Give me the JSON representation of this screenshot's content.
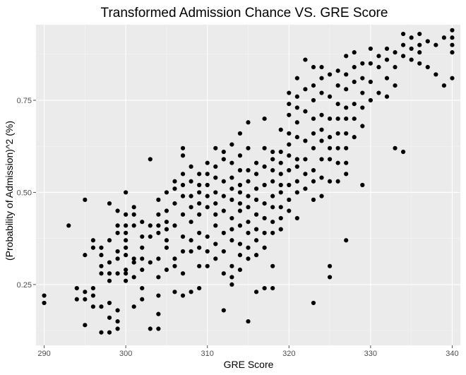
{
  "colors": {
    "panel": "#ebebeb",
    "grid_major": "#ffffff",
    "grid_minor": "#f5f5f5",
    "point": "#000000",
    "tick": "#4d4d4d"
  },
  "chart_data": {
    "type": "scatter",
    "title": "Transformed Admission Chance VS. GRE Score",
    "xlabel": "GRE Score",
    "ylabel": "(Probability of Admission)^2 (%)",
    "xlim": [
      289,
      341
    ],
    "ylim": [
      0.085,
      0.955
    ],
    "xticks": [
      290,
      300,
      310,
      320,
      330,
      340
    ],
    "xtick_labels": [
      "290",
      "300",
      "310",
      "320",
      "330",
      "340"
    ],
    "yticks": [
      0.25,
      0.5,
      0.75
    ],
    "ytick_labels": [
      "0.25",
      "0.50",
      "0.75"
    ],
    "grid": true,
    "legend": "none",
    "points": [
      [
        290,
        0.2
      ],
      [
        290,
        0.22
      ],
      [
        293,
        0.41
      ],
      [
        294,
        0.21
      ],
      [
        294,
        0.24
      ],
      [
        295,
        0.14
      ],
      [
        295,
        0.21
      ],
      [
        295,
        0.23
      ],
      [
        295,
        0.33
      ],
      [
        295,
        0.48
      ],
      [
        296,
        0.19
      ],
      [
        296,
        0.22
      ],
      [
        296,
        0.24
      ],
      [
        296,
        0.35
      ],
      [
        296,
        0.37
      ],
      [
        297,
        0.12
      ],
      [
        297,
        0.19
      ],
      [
        297,
        0.28
      ],
      [
        297,
        0.3
      ],
      [
        297,
        0.33
      ],
      [
        297,
        0.35
      ],
      [
        298,
        0.12
      ],
      [
        298,
        0.16
      ],
      [
        298,
        0.2
      ],
      [
        298,
        0.26
      ],
      [
        298,
        0.28
      ],
      [
        298,
        0.31
      ],
      [
        298,
        0.37
      ],
      [
        298,
        0.47
      ],
      [
        299,
        0.13
      ],
      [
        299,
        0.15
      ],
      [
        299,
        0.18
      ],
      [
        299,
        0.28
      ],
      [
        299,
        0.32
      ],
      [
        299,
        0.34
      ],
      [
        299,
        0.39
      ],
      [
        299,
        0.41
      ],
      [
        299,
        0.45
      ],
      [
        300,
        0.26
      ],
      [
        300,
        0.28
      ],
      [
        300,
        0.29
      ],
      [
        300,
        0.33
      ],
      [
        300,
        0.35
      ],
      [
        300,
        0.37
      ],
      [
        300,
        0.39
      ],
      [
        300,
        0.41
      ],
      [
        300,
        0.44
      ],
      [
        300,
        0.5
      ],
      [
        301,
        0.19
      ],
      [
        301,
        0.27
      ],
      [
        301,
        0.31
      ],
      [
        301,
        0.32
      ],
      [
        301,
        0.41
      ],
      [
        301,
        0.44
      ],
      [
        301,
        0.46
      ],
      [
        302,
        0.21
      ],
      [
        302,
        0.24
      ],
      [
        302,
        0.29
      ],
      [
        302,
        0.32
      ],
      [
        302,
        0.35
      ],
      [
        302,
        0.38
      ],
      [
        302,
        0.42
      ],
      [
        303,
        0.13
      ],
      [
        303,
        0.31
      ],
      [
        303,
        0.38
      ],
      [
        303,
        0.41
      ],
      [
        303,
        0.59
      ],
      [
        304,
        0.13
      ],
      [
        304,
        0.17
      ],
      [
        304,
        0.22
      ],
      [
        304,
        0.27
      ],
      [
        304,
        0.32
      ],
      [
        304,
        0.39
      ],
      [
        304,
        0.41
      ],
      [
        304,
        0.44
      ],
      [
        304,
        0.48
      ],
      [
        305,
        0.29
      ],
      [
        305,
        0.35
      ],
      [
        305,
        0.37
      ],
      [
        305,
        0.4
      ],
      [
        305,
        0.42
      ],
      [
        305,
        0.45
      ],
      [
        305,
        0.5
      ],
      [
        306,
        0.23
      ],
      [
        306,
        0.3
      ],
      [
        306,
        0.32
      ],
      [
        306,
        0.41
      ],
      [
        306,
        0.47
      ],
      [
        306,
        0.51
      ],
      [
        306,
        0.53
      ],
      [
        307,
        0.22
      ],
      [
        307,
        0.28
      ],
      [
        307,
        0.34
      ],
      [
        307,
        0.38
      ],
      [
        307,
        0.44
      ],
      [
        307,
        0.49
      ],
      [
        307,
        0.52
      ],
      [
        307,
        0.55
      ],
      [
        307,
        0.6
      ],
      [
        307,
        0.62
      ],
      [
        308,
        0.23
      ],
      [
        308,
        0.34
      ],
      [
        308,
        0.37
      ],
      [
        308,
        0.42
      ],
      [
        308,
        0.46
      ],
      [
        308,
        0.49
      ],
      [
        308,
        0.53
      ],
      [
        308,
        0.57
      ],
      [
        309,
        0.24
      ],
      [
        309,
        0.3
      ],
      [
        309,
        0.35
      ],
      [
        309,
        0.39
      ],
      [
        309,
        0.44
      ],
      [
        309,
        0.47
      ],
      [
        309,
        0.5
      ],
      [
        309,
        0.52
      ],
      [
        309,
        0.55
      ],
      [
        310,
        0.3
      ],
      [
        310,
        0.34
      ],
      [
        310,
        0.38
      ],
      [
        310,
        0.46
      ],
      [
        310,
        0.49
      ],
      [
        310,
        0.52
      ],
      [
        310,
        0.55
      ],
      [
        310,
        0.58
      ],
      [
        311,
        0.32
      ],
      [
        311,
        0.36
      ],
      [
        311,
        0.41
      ],
      [
        311,
        0.44
      ],
      [
        311,
        0.47
      ],
      [
        311,
        0.5
      ],
      [
        311,
        0.54
      ],
      [
        311,
        0.57
      ],
      [
        311,
        0.62
      ],
      [
        312,
        0.18
      ],
      [
        312,
        0.28
      ],
      [
        312,
        0.34
      ],
      [
        312,
        0.39
      ],
      [
        312,
        0.45
      ],
      [
        312,
        0.49
      ],
      [
        312,
        0.53
      ],
      [
        312,
        0.59
      ],
      [
        312,
        0.61
      ],
      [
        313,
        0.25
      ],
      [
        313,
        0.27
      ],
      [
        313,
        0.3
      ],
      [
        313,
        0.37
      ],
      [
        313,
        0.4
      ],
      [
        313,
        0.43
      ],
      [
        313,
        0.48
      ],
      [
        313,
        0.51
      ],
      [
        313,
        0.54
      ],
      [
        313,
        0.58
      ],
      [
        313,
        0.63
      ],
      [
        314,
        0.29
      ],
      [
        314,
        0.33
      ],
      [
        314,
        0.36
      ],
      [
        314,
        0.41
      ],
      [
        314,
        0.45
      ],
      [
        314,
        0.47
      ],
      [
        314,
        0.5
      ],
      [
        314,
        0.52
      ],
      [
        314,
        0.56
      ],
      [
        314,
        0.6
      ],
      [
        314,
        0.66
      ],
      [
        315,
        0.15
      ],
      [
        315,
        0.32
      ],
      [
        315,
        0.35
      ],
      [
        315,
        0.39
      ],
      [
        315,
        0.42
      ],
      [
        315,
        0.46
      ],
      [
        315,
        0.49
      ],
      [
        315,
        0.53
      ],
      [
        315,
        0.56
      ],
      [
        315,
        0.62
      ],
      [
        315,
        0.69
      ],
      [
        316,
        0.23
      ],
      [
        316,
        0.33
      ],
      [
        316,
        0.37
      ],
      [
        316,
        0.4
      ],
      [
        316,
        0.44
      ],
      [
        316,
        0.48
      ],
      [
        316,
        0.51
      ],
      [
        316,
        0.55
      ],
      [
        316,
        0.58
      ],
      [
        317,
        0.24
      ],
      [
        317,
        0.35
      ],
      [
        317,
        0.39
      ],
      [
        317,
        0.43
      ],
      [
        317,
        0.47
      ],
      [
        317,
        0.52
      ],
      [
        317,
        0.57
      ],
      [
        317,
        0.62
      ],
      [
        317,
        0.7
      ],
      [
        318,
        0.24
      ],
      [
        318,
        0.3
      ],
      [
        318,
        0.39
      ],
      [
        318,
        0.42
      ],
      [
        318,
        0.46
      ],
      [
        318,
        0.49
      ],
      [
        318,
        0.53
      ],
      [
        318,
        0.56
      ],
      [
        318,
        0.59
      ],
      [
        318,
        0.61
      ],
      [
        319,
        0.4
      ],
      [
        319,
        0.43
      ],
      [
        319,
        0.46
      ],
      [
        319,
        0.5
      ],
      [
        319,
        0.52
      ],
      [
        319,
        0.55
      ],
      [
        319,
        0.58
      ],
      [
        319,
        0.61
      ],
      [
        319,
        0.67
      ],
      [
        320,
        0.45
      ],
      [
        320,
        0.48
      ],
      [
        320,
        0.52
      ],
      [
        320,
        0.56
      ],
      [
        320,
        0.6
      ],
      [
        320,
        0.63
      ],
      [
        320,
        0.66
      ],
      [
        320,
        0.71
      ],
      [
        320,
        0.74
      ],
      [
        320,
        0.77
      ],
      [
        321,
        0.43
      ],
      [
        321,
        0.5
      ],
      [
        321,
        0.53
      ],
      [
        321,
        0.57
      ],
      [
        321,
        0.59
      ],
      [
        321,
        0.65
      ],
      [
        321,
        0.69
      ],
      [
        321,
        0.73
      ],
      [
        321,
        0.76
      ],
      [
        321,
        0.81
      ],
      [
        322,
        0.51
      ],
      [
        322,
        0.55
      ],
      [
        322,
        0.59
      ],
      [
        322,
        0.64
      ],
      [
        322,
        0.72
      ],
      [
        322,
        0.78
      ],
      [
        322,
        0.86
      ],
      [
        323,
        0.2
      ],
      [
        323,
        0.48
      ],
      [
        323,
        0.53
      ],
      [
        323,
        0.56
      ],
      [
        323,
        0.62
      ],
      [
        323,
        0.66
      ],
      [
        323,
        0.7
      ],
      [
        323,
        0.75
      ],
      [
        323,
        0.79
      ],
      [
        323,
        0.84
      ],
      [
        324,
        0.49
      ],
      [
        324,
        0.54
      ],
      [
        324,
        0.59
      ],
      [
        324,
        0.64
      ],
      [
        324,
        0.67
      ],
      [
        324,
        0.71
      ],
      [
        324,
        0.77
      ],
      [
        324,
        0.81
      ],
      [
        324,
        0.84
      ],
      [
        325,
        0.27
      ],
      [
        325,
        0.3
      ],
      [
        325,
        0.53
      ],
      [
        325,
        0.59
      ],
      [
        325,
        0.62
      ],
      [
        325,
        0.65
      ],
      [
        325,
        0.7
      ],
      [
        325,
        0.76
      ],
      [
        325,
        0.82
      ],
      [
        326,
        0.53
      ],
      [
        326,
        0.58
      ],
      [
        326,
        0.62
      ],
      [
        326,
        0.66
      ],
      [
        326,
        0.7
      ],
      [
        326,
        0.74
      ],
      [
        326,
        0.79
      ],
      [
        326,
        0.83
      ],
      [
        327,
        0.37
      ],
      [
        327,
        0.55
      ],
      [
        327,
        0.58
      ],
      [
        327,
        0.62
      ],
      [
        327,
        0.66
      ],
      [
        327,
        0.7
      ],
      [
        327,
        0.73
      ],
      [
        327,
        0.78
      ],
      [
        327,
        0.82
      ],
      [
        327,
        0.87
      ],
      [
        328,
        0.65
      ],
      [
        328,
        0.7
      ],
      [
        328,
        0.74
      ],
      [
        328,
        0.8
      ],
      [
        328,
        0.84
      ],
      [
        328,
        0.88
      ],
      [
        329,
        0.52
      ],
      [
        329,
        0.68
      ],
      [
        329,
        0.73
      ],
      [
        329,
        0.77
      ],
      [
        329,
        0.81
      ],
      [
        329,
        0.85
      ],
      [
        330,
        0.75
      ],
      [
        330,
        0.8
      ],
      [
        330,
        0.85
      ],
      [
        330,
        0.89
      ],
      [
        331,
        0.77
      ],
      [
        331,
        0.84
      ],
      [
        331,
        0.87
      ],
      [
        332,
        0.76
      ],
      [
        332,
        0.81
      ],
      [
        332,
        0.86
      ],
      [
        332,
        0.89
      ],
      [
        333,
        0.62
      ],
      [
        333,
        0.79
      ],
      [
        333,
        0.84
      ],
      [
        333,
        0.88
      ],
      [
        334,
        0.61
      ],
      [
        334,
        0.87
      ],
      [
        334,
        0.9
      ],
      [
        334,
        0.93
      ],
      [
        335,
        0.86
      ],
      [
        335,
        0.89
      ],
      [
        335,
        0.92
      ],
      [
        336,
        0.85
      ],
      [
        336,
        0.88
      ],
      [
        336,
        0.9
      ],
      [
        336,
        0.93
      ],
      [
        337,
        0.84
      ],
      [
        337,
        0.91
      ],
      [
        338,
        0.82
      ],
      [
        338,
        0.9
      ],
      [
        339,
        0.79
      ],
      [
        339,
        0.92
      ],
      [
        340,
        0.81
      ],
      [
        340,
        0.88
      ],
      [
        340,
        0.9
      ],
      [
        340,
        0.92
      ],
      [
        340,
        0.94
      ]
    ]
  }
}
